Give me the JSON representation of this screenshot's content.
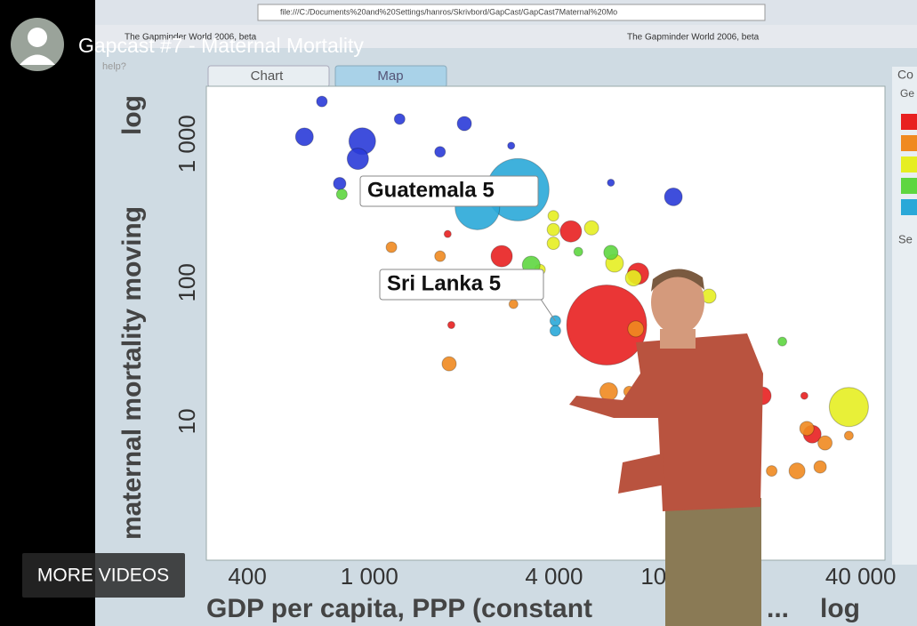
{
  "video": {
    "title": "Gapcast #7 - Maternal Mortality",
    "more_videos": "MORE VIDEOS"
  },
  "browser": {
    "address": "file:///C:/Documents%20and%20Settings/hanros/Skrivbord/GapCast/GapCast7Maternal%20Mo",
    "tabs": [
      "The Gapminder World 2006, beta",
      "The Gapminder World 2006, beta"
    ]
  },
  "app": {
    "help": "help?",
    "tabs": [
      "Chart",
      "Map"
    ]
  },
  "side_panel": {
    "heading": "Co",
    "subheading": "Ge",
    "section": "Se",
    "colors": [
      "#e82020",
      "#f08a20",
      "#e6ee22",
      "#5ed640",
      "#2aa8d8"
    ]
  },
  "chart_data": {
    "type": "scatter",
    "xlabel": "GDP per capita, PPP (constant",
    "xlabel_ellipsis": "...",
    "xlabel_suffix": "log",
    "ylabel": "maternal mortality moving",
    "ylabel_suffix": "log",
    "xscale": "log",
    "yscale": "log",
    "grid": true,
    "xlim": [
      294,
      48000
    ],
    "ylim": [
      1,
      2600
    ],
    "xticks": [
      400,
      {
        "value": 1000,
        "label": "1 000"
      },
      {
        "value": 4000,
        "label": "4 000"
      },
      {
        "value": 10000,
        "label": "10 000"
      },
      {
        "value": 40000,
        "label": "40 000"
      }
    ],
    "yticks": [
      10,
      100,
      {
        "value": 1000,
        "label": "1 000"
      }
    ],
    "annotations": [
      {
        "text": "Guatemala 5",
        "x": 3050,
        "y": 467
      },
      {
        "text": "Sri Lanka 5",
        "x": 4040,
        "y": 53
      }
    ],
    "x": [
      3050,
      2250,
      614,
      948,
      917,
      700,
      1255,
      2040,
      9800,
      6130,
      800,
      2900,
      1700,
      813,
      2700,
      4540,
      5940,
      7520,
      19100,
      27800,
      1850,
      1800,
      1180,
      1700,
      1820,
      2950,
      6030,
      7030,
      8010,
      24800,
      30600,
      20500,
      26700,
      29500,
      36600,
      7390,
      36600,
      6300,
      5300,
      3980,
      3980,
      3980,
      3600,
      12800,
      7260,
      9800,
      8540,
      3370,
      6130,
      22200,
      16100,
      4800,
      4040,
      4040,
      26200
    ],
    "values": [
      467,
      348,
      1124,
      1045,
      780,
      2020,
      1510,
      1400,
      415,
      525,
      517,
      970,
      876,
      433,
      155,
      234,
      49.5,
      116,
      15.3,
      8.1,
      49.5,
      224,
      180,
      155,
      26,
      70,
      16.4,
      16.4,
      18,
      4.4,
      7,
      4.4,
      8.9,
      4.7,
      7.9,
      46.4,
      12.7,
      138,
      248,
      241,
      192,
      303,
      124,
      80,
      108,
      13.4,
      17.7,
      134,
      165,
      37.6,
      16.3,
      167,
      53,
      45,
      15.3
    ],
    "sizes": [
      35,
      25,
      10,
      15,
      12,
      6,
      6,
      8,
      10,
      4,
      7,
      4,
      6,
      6,
      12,
      12,
      45,
      12,
      10,
      10,
      4,
      4,
      6,
      6,
      8,
      5,
      10,
      6,
      7,
      9,
      8,
      6,
      8,
      7,
      5,
      9,
      22,
      10,
      8,
      7,
      7,
      6,
      6,
      8,
      9,
      6,
      6,
      10,
      8,
      5,
      5,
      5,
      6,
      6,
      4
    ],
    "colors": [
      "#2aa8d8",
      "#2aa8d8",
      "#2a3bd8",
      "#2a3bd8",
      "#2a3bd8",
      "#2a3bd8",
      "#2a3bd8",
      "#2a3bd8",
      "#2a3bd8",
      "#2a3bd8",
      "#2a3bd8",
      "#2a3bd8",
      "#2a3bd8",
      "#5ed640",
      "#e82020",
      "#e82020",
      "#e82020",
      "#e82020",
      "#e82020",
      "#e82020",
      "#e82020",
      "#e82020",
      "#f08a20",
      "#f08a20",
      "#f08a20",
      "#f08a20",
      "#f08a20",
      "#f08a20",
      "#f08a20",
      "#f08a20",
      "#f08a20",
      "#f08a20",
      "#f08a20",
      "#f08a20",
      "#f08a20",
      "#f08a20",
      "#e6ee22",
      "#e6ee22",
      "#e6ee22",
      "#e6ee22",
      "#e6ee22",
      "#e6ee22",
      "#e6ee22",
      "#e6ee22",
      "#e6ee22",
      "#e6ee22",
      "#e6ee22",
      "#5ed640",
      "#5ed640",
      "#5ed640",
      "#5ed640",
      "#5ed640",
      "#2aa8d8",
      "#2aa8d8",
      "#e82020"
    ]
  }
}
